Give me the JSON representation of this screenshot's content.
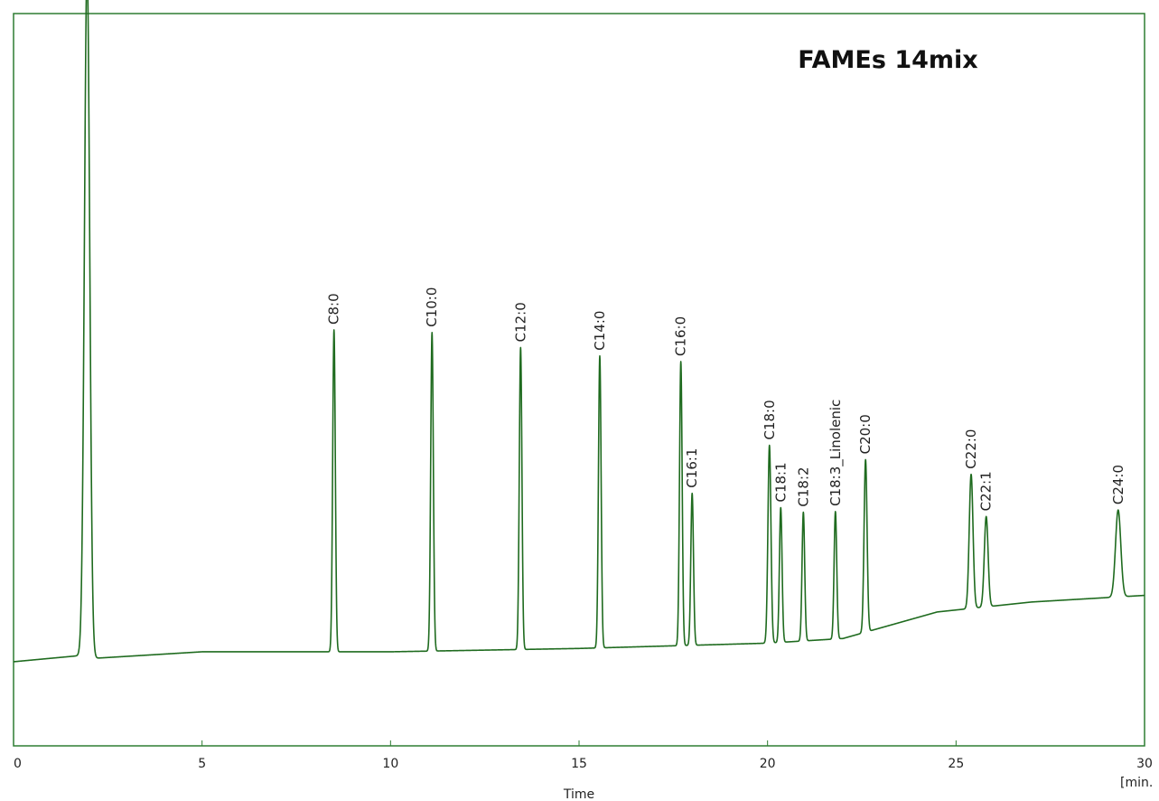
{
  "chart_data": {
    "type": "line",
    "title": "FAMEs 14mix",
    "xlabel": "Time",
    "x_unit": "[min.",
    "xlim": [
      0,
      30
    ],
    "x_ticks": [
      "0",
      "5",
      "10",
      "15",
      "20",
      "25",
      "30"
    ],
    "grid": false,
    "colors": {
      "trace": "#1f6b1f",
      "frame": "#2e7d32"
    },
    "baseline": [
      [
        0,
        6
      ],
      [
        1.9,
        7
      ],
      [
        2.1,
        6.5
      ],
      [
        5,
        7.5
      ],
      [
        10,
        7.5
      ],
      [
        15,
        8
      ],
      [
        20,
        8.8
      ],
      [
        22,
        9.5
      ],
      [
        24.5,
        13.5
      ],
      [
        27,
        15
      ],
      [
        30,
        16
      ]
    ],
    "peaks": [
      {
        "label": "",
        "time": 1.95,
        "height": 104,
        "width": 0.07
      },
      {
        "label": "C8:0",
        "time": 8.5,
        "height": 48.5,
        "width": 0.035
      },
      {
        "label": "C10:0",
        "time": 11.1,
        "height": 48.0,
        "width": 0.035
      },
      {
        "label": "C12:0",
        "time": 13.45,
        "height": 45.5,
        "width": 0.035
      },
      {
        "label": "C14:0",
        "time": 15.55,
        "height": 44.0,
        "width": 0.035
      },
      {
        "label": "C16:0",
        "time": 17.7,
        "height": 42.8,
        "width": 0.035
      },
      {
        "label": "C16:1",
        "time": 18.0,
        "height": 22.9,
        "width": 0.035
      },
      {
        "label": "C18:0",
        "time": 20.05,
        "height": 29.8,
        "width": 0.04
      },
      {
        "label": "C18:1",
        "time": 20.35,
        "height": 20.3,
        "width": 0.035
      },
      {
        "label": "C18:2",
        "time": 20.95,
        "height": 19.4,
        "width": 0.035
      },
      {
        "label": "C18:3_Linolenic",
        "time": 21.8,
        "height": 19.2,
        "width": 0.035
      },
      {
        "label": "C20:0",
        "time": 22.6,
        "height": 26.0,
        "width": 0.04
      },
      {
        "label": "C22:0",
        "time": 25.4,
        "height": 20.2,
        "width": 0.05
      },
      {
        "label": "C22:1",
        "time": 25.8,
        "height": 13.6,
        "width": 0.05
      },
      {
        "label": "C24:0",
        "time": 29.3,
        "height": 13.1,
        "width": 0.07
      }
    ]
  }
}
